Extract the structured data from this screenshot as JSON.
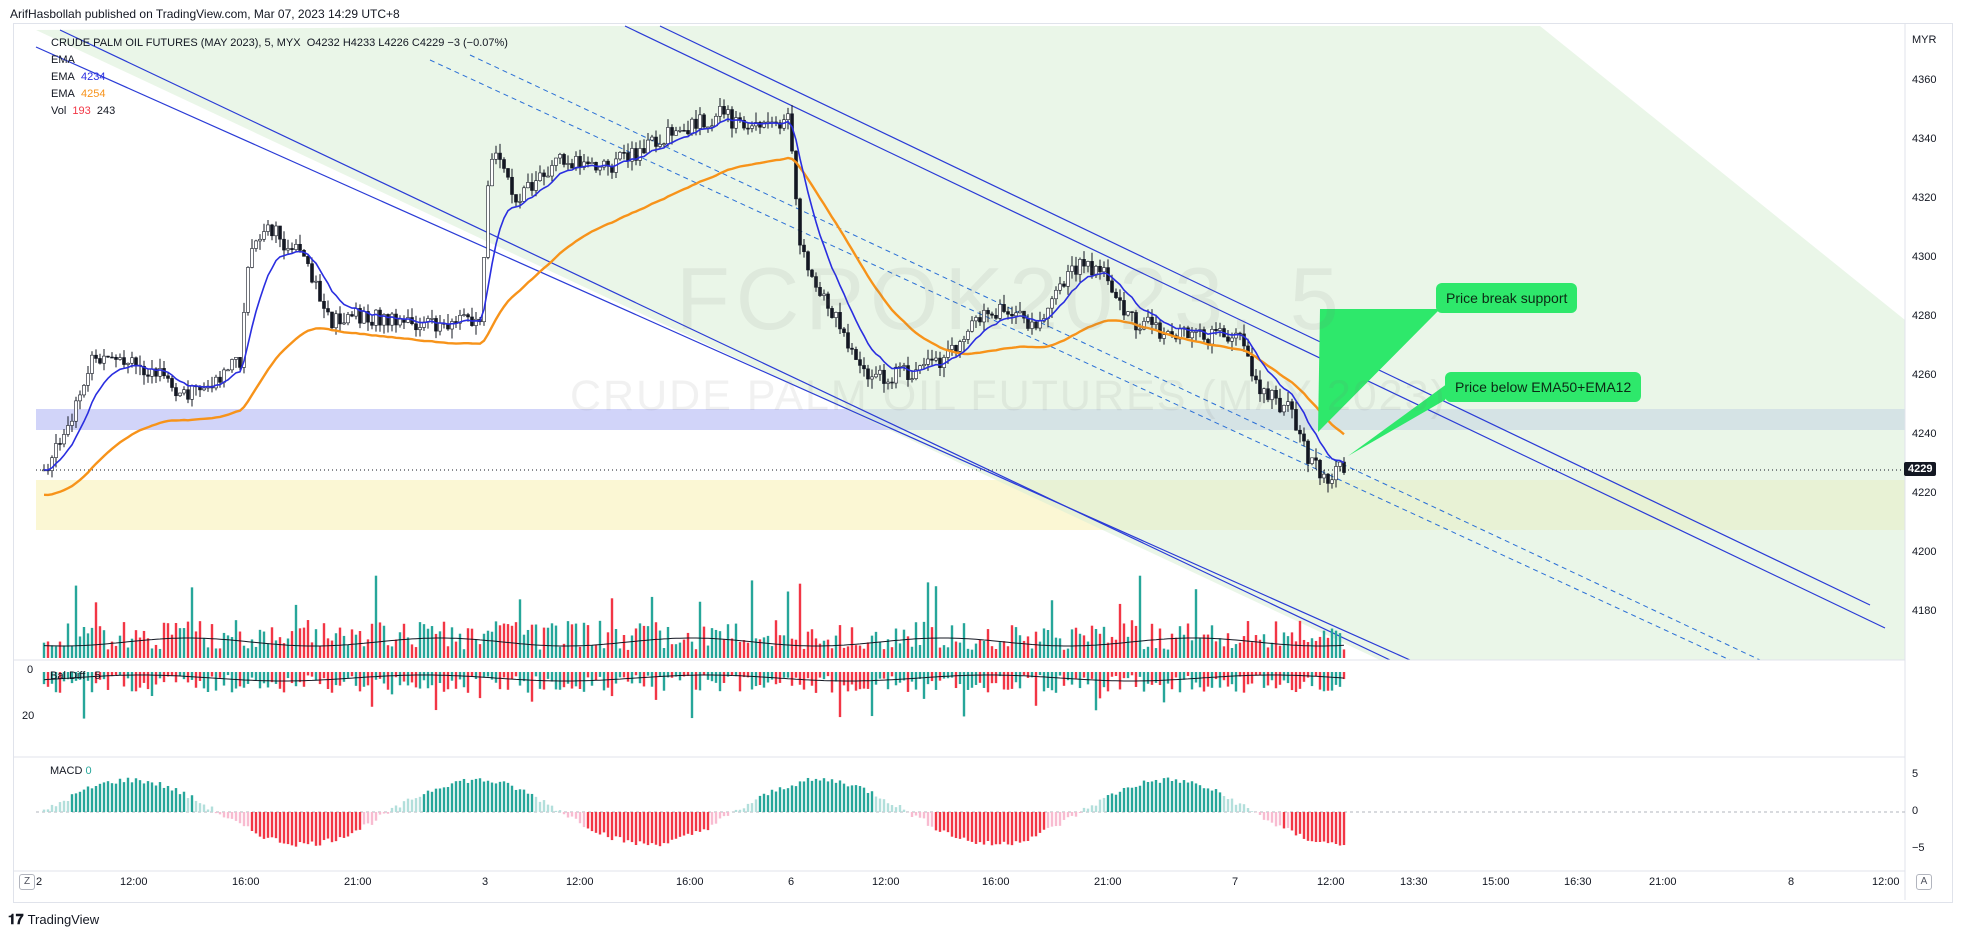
{
  "header": {
    "published": "ArifHasbollah published on TradingView.com, Mar 07, 2023 14:29 UTC+8"
  },
  "legend": {
    "title": "CRUDE PALM OIL FUTURES (MAY 2023), 5, MYX",
    "ohlc": "O4232  H4233  L4226  C4229  −3 (−0.07%)",
    "ema1_label": "EMA",
    "ema2_label": "EMA",
    "ema2_value": "4234",
    "ema3_label": "EMA",
    "ema3_value": "4254",
    "vol_label": "Vol",
    "vol_value1": "193",
    "vol_value2": "243"
  },
  "watermark": {
    "symbol": "FCPOK2023, 5",
    "name": "CRUDE PALM OIL FUTURES (MAY 2023)"
  },
  "currency": "MYR",
  "last_price": "4229",
  "annotations": [
    {
      "text": "Price break support"
    },
    {
      "text": "Price below EMA50+EMA12"
    }
  ],
  "price_axis": [
    "4360",
    "4340",
    "4320",
    "4300",
    "4280",
    "4260",
    "4240",
    "4220",
    "4200",
    "4180"
  ],
  "time_axis": [
    "2",
    "12:00",
    "16:00",
    "21:00",
    "3",
    "12:00",
    "16:00",
    "6",
    "12:00",
    "16:00",
    "21:00",
    "7",
    "12:00",
    "13:30",
    "15:00",
    "16:30",
    "21:00",
    "8",
    "12:00"
  ],
  "volume_pane": {
    "label": "Bal Diff",
    "value": "5",
    "ticks": [
      "0",
      "20"
    ]
  },
  "macd_pane": {
    "label": "MACD",
    "value": "0",
    "ticks": [
      "5",
      "0",
      "−5"
    ]
  },
  "footer": {
    "brand": "TradingView",
    "z_button": "Z",
    "a_button": "A"
  },
  "colors": {
    "ema_fast": "#2a2ee0",
    "ema_slow": "#f7931a",
    "up": "#26a69a",
    "down": "#f23645",
    "annot": "#2ee86b"
  }
}
